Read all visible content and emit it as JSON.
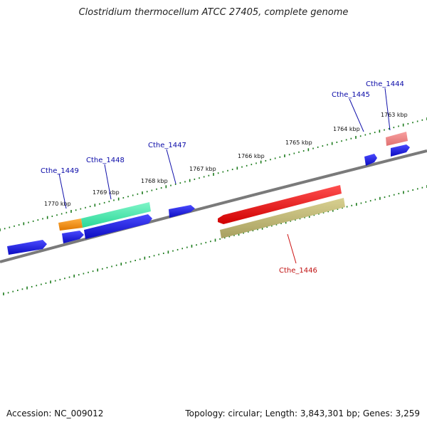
{
  "title": "Clostridium thermocellum ATCC 27405, complete genome",
  "footer": {
    "accession": "Accession: NC_009012",
    "summary": "Topology: circular; Length: 3,843,301 bp; Genes: 3,259"
  },
  "colors": {
    "backbone": "#7a7a7a",
    "tick": "#1a7a1a",
    "cds_blue": "#1010dd",
    "orange": "#f08a10",
    "mint": "#3ee8a8",
    "red": "#ee1010",
    "olive": "#b8b070",
    "pink": "#e87878",
    "label_blue": "#0a0aa8",
    "label_red": "#c01010"
  },
  "kbp_labels": [
    "1763 kbp",
    "1764 kbp",
    "1765 kbp",
    "1766 kbp",
    "1767 kbp",
    "1768 kbp",
    "1769 kbp",
    "1770 kbp"
  ],
  "gene_labels": [
    {
      "name": "Cthe_1444",
      "color": "label_blue"
    },
    {
      "name": "Cthe_1445",
      "color": "label_blue"
    },
    {
      "name": "Cthe_1446",
      "color": "label_red"
    },
    {
      "name": "Cthe_1447",
      "color": "label_blue"
    },
    {
      "name": "Cthe_1448",
      "color": "label_blue"
    },
    {
      "name": "Cthe_1449",
      "color": "label_blue"
    }
  ]
}
